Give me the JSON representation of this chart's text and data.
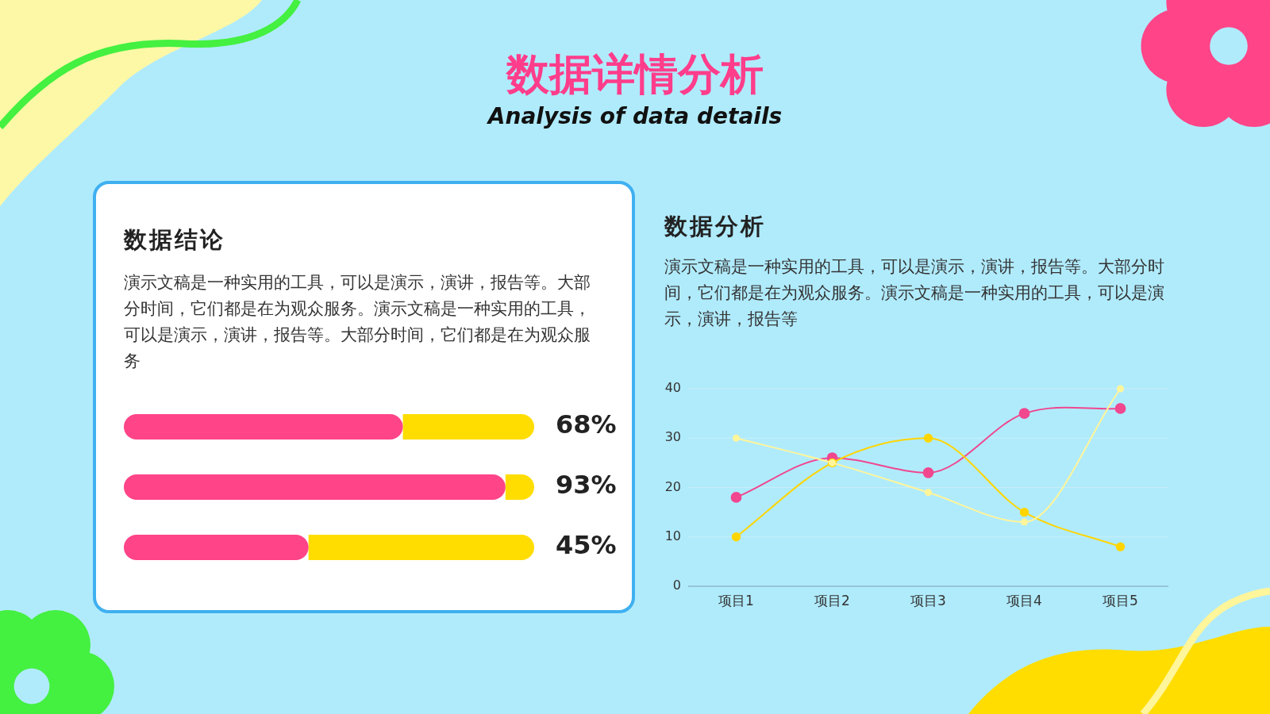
{
  "chart_data": [
    {
      "type": "other",
      "title": "数据详情分析",
      "subtitle": "Analysis of data details"
    },
    {
      "type": "bar",
      "title": "数据结论",
      "annotations": [
        "演示文稿是一种实用的工具，可以是演示，演讲，报告等。大部分时间，它们都是在为观众服务。演示文稿是一种实用的工具，可以是演示，演讲，报告等。大部分时间，它们都是在为观众服务"
      ],
      "orientation": "horizontal",
      "stacked": true,
      "categories": [
        null,
        null,
        null
      ],
      "xlim": [
        0,
        100
      ],
      "series": [
        {
          "color": "#ff4488",
          "values": [
            68,
            93,
            45
          ],
          "value_labels": [
            "68%",
            "93%",
            "45%"
          ]
        },
        {
          "color": "#ffdd00",
          "values": [
            32,
            7,
            55
          ]
        }
      ]
    },
    {
      "type": "line",
      "title": "数据分析",
      "annotations": [
        "演示文稿是一种实用的工具，可以是演示，演讲，报告等。大部分时间，它们都是在为观众服务。演示文稿是一种实用的工具，可以是演示，演讲，报告等"
      ],
      "categories": [
        "项目1",
        "项目2",
        "项目3",
        "项目4",
        "项目5"
      ],
      "ylim": [
        0,
        40
      ],
      "yticks": [
        0,
        10,
        20,
        30,
        40
      ],
      "grid": "y",
      "marker": "circle",
      "series": [
        {
          "color": "#f0478f",
          "values": [
            18,
            26,
            23,
            35,
            36
          ]
        },
        {
          "color": "#ffd500",
          "values": [
            10,
            25,
            30,
            15,
            8
          ]
        },
        {
          "color": "#fff59a",
          "values": [
            30,
            25,
            19,
            13,
            40
          ]
        }
      ]
    }
  ]
}
